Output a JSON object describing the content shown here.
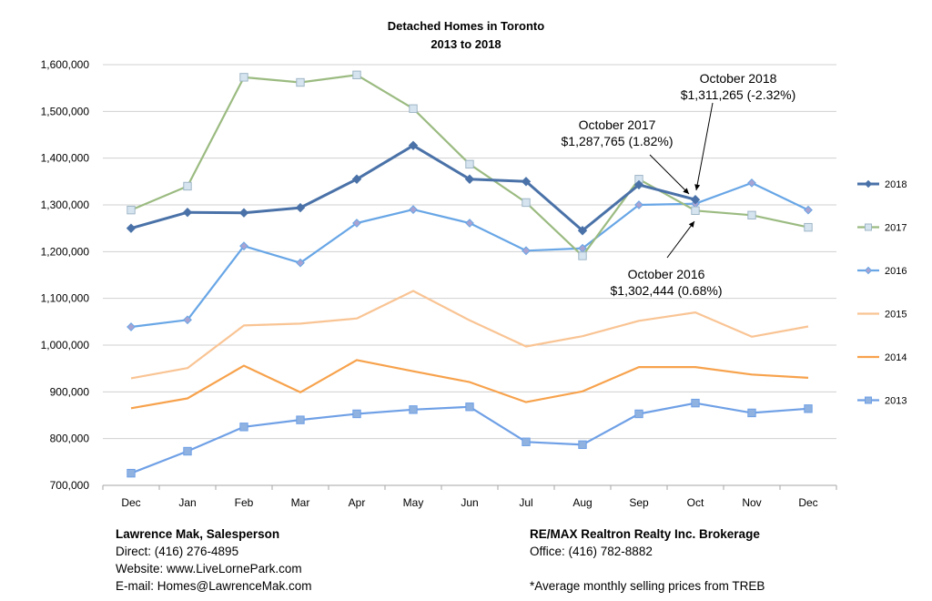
{
  "chart_data": {
    "type": "line",
    "title": "Detached Homes in Toronto",
    "subtitle": "2013 to 2018",
    "categories": [
      "Dec",
      "Jan",
      "Feb",
      "Mar",
      "Apr",
      "May",
      "Jun",
      "Jul",
      "Aug",
      "Sep",
      "Oct",
      "Nov",
      "Dec"
    ],
    "ylim": [
      700000,
      1600000
    ],
    "ytick_labels": [
      "700,000",
      "800,000",
      "900,000",
      "1,000,000",
      "1,100,000",
      "1,200,000",
      "1,300,000",
      "1,400,000",
      "1,500,000",
      "1,600,000"
    ],
    "grid": true,
    "legend_position": "right",
    "series": [
      {
        "name": "2018",
        "color": "#4a72a8",
        "marker": "diamond",
        "values": [
          1250000,
          1284000,
          1283000,
          1294000,
          1355000,
          1427000,
          1355000,
          1350000,
          1245000,
          1343000,
          1311265,
          null,
          null
        ]
      },
      {
        "name": "2017",
        "color": "#9bbb81",
        "marker": "square-open",
        "values": [
          1289000,
          1340000,
          1573000,
          1562000,
          1578000,
          1506000,
          1387000,
          1305000,
          1191000,
          1355000,
          1287765,
          1278000,
          1252000
        ]
      },
      {
        "name": "2016",
        "color": "#68a6e6",
        "marker": "diamond",
        "values": [
          1039000,
          1054000,
          1212000,
          1176000,
          1261000,
          1290000,
          1261000,
          1202000,
          1207000,
          1300000,
          1302444,
          1347000,
          1289000
        ]
      },
      {
        "name": "2015",
        "color": "#f9c494",
        "marker": "none",
        "values": [
          929000,
          951000,
          1042000,
          1046000,
          1057000,
          1116000,
          1053000,
          997000,
          1019000,
          1052000,
          1070000,
          1018000,
          1040000
        ]
      },
      {
        "name": "2014",
        "color": "#f7a24c",
        "marker": "none",
        "values": [
          865000,
          886000,
          956000,
          899000,
          968000,
          944000,
          921000,
          878000,
          901000,
          953000,
          953000,
          937000,
          930000
        ]
      },
      {
        "name": "2013",
        "color": "#6fa0e6",
        "marker": "square",
        "values": [
          726000,
          773000,
          825000,
          840000,
          853000,
          862000,
          868000,
          793000,
          787000,
          853000,
          876000,
          855000,
          864000
        ]
      }
    ],
    "annotations": [
      {
        "line1": "October 2018",
        "line2": "$1,311,265 (-2.32%)"
      },
      {
        "line1": "October 2017",
        "line2": "$1,287,765 (1.82%)"
      },
      {
        "line1": "October 2016",
        "line2": "$1,302,444 (0.68%)"
      }
    ]
  },
  "footer": {
    "left": {
      "name": "Lawrence Mak, Salesperson",
      "direct": "Direct:  (416) 276-4895",
      "website": "Website:  www.LiveLornePark.com",
      "email": "E-mail:  Homes@LawrenceMak.com"
    },
    "right": {
      "brokerage": "RE/MAX Realtron Realty Inc. Brokerage",
      "office": "Office: (416) 782-8882"
    },
    "note": "*Average monthly selling prices from TREB"
  }
}
